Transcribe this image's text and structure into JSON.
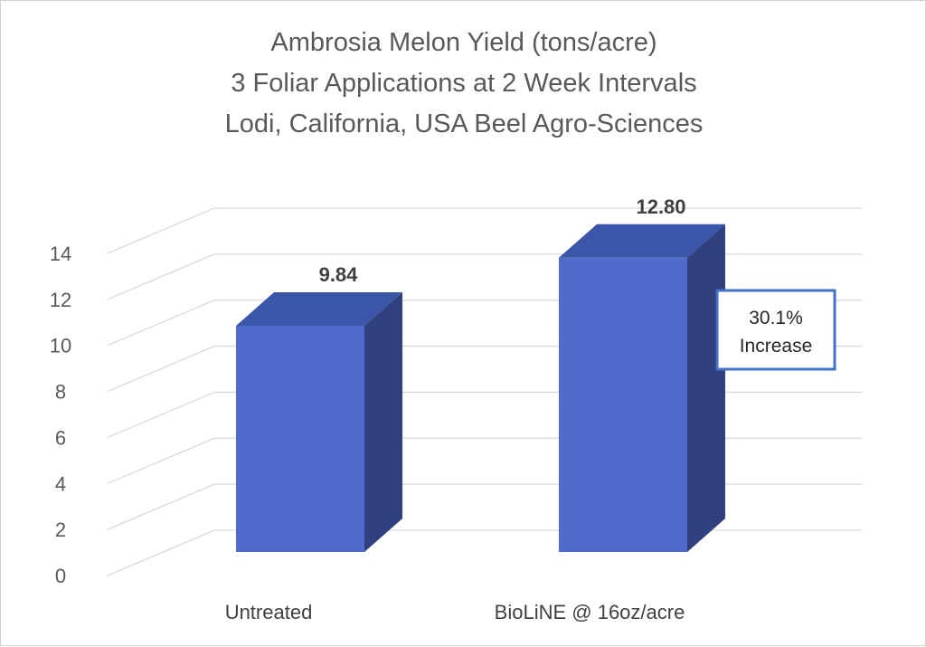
{
  "chart_data": {
    "type": "bar",
    "title_lines": [
      "Ambrosia Melon Yield (tons/acre)",
      "3 Foliar Applications at 2 Week Intervals",
      "Lodi, California, USA Beel Agro-Sciences"
    ],
    "categories": [
      "Untreated",
      "BioLiNE @ 16oz/acre"
    ],
    "values": [
      9.84,
      12.8
    ],
    "data_labels": [
      "9.84",
      "12.80"
    ],
    "yticks": [
      "0",
      "2",
      "4",
      "6",
      "8",
      "10",
      "12",
      "14"
    ],
    "ylim": [
      0,
      14
    ],
    "grid": true,
    "style": "3d-column",
    "colors": {
      "bar_front": "#4f6bcc",
      "bar_top": "#3b55a8",
      "bar_side": "#31407f",
      "grid": "#d9d9d9",
      "callout_border": "#4472c4"
    },
    "annotation": {
      "lines": [
        "30.1%",
        "Increase"
      ],
      "category": "BioLiNE @ 16oz/acre"
    }
  }
}
